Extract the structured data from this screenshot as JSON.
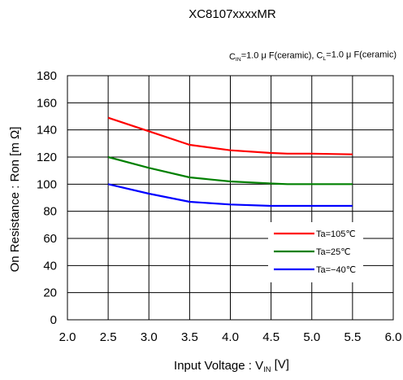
{
  "chart_data": {
    "type": "line",
    "title": "XC8107xxxxMR",
    "subtitle": "C_IN=1.0 μ F(ceramic), C_L=1.0 μ F(ceramic)",
    "xlabel": "Input Voltage : V_IN [V]",
    "ylabel": "On Resistance : Ron [m Ω]",
    "xlim": [
      2.0,
      6.0
    ],
    "ylim": [
      0,
      180
    ],
    "xticks": [
      "2.0",
      "2.5",
      "3.0",
      "3.5",
      "4.0",
      "4.5",
      "5.0",
      "5.5",
      "6.0"
    ],
    "yticks": [
      "0",
      "20",
      "40",
      "60",
      "80",
      "100",
      "120",
      "140",
      "160",
      "180"
    ],
    "grid": true,
    "legend_position": "lower-right",
    "x": [
      2.5,
      3.0,
      3.5,
      4.0,
      4.5,
      4.7,
      5.0,
      5.5
    ],
    "series": [
      {
        "name": "Ta=105℃",
        "color": "#ff0000",
        "values": [
          149,
          139,
          129,
          125,
          123,
          122.5,
          122.5,
          122
        ]
      },
      {
        "name": "Ta=25℃",
        "color": "#008000",
        "values": [
          120,
          112,
          105,
          102,
          100.5,
          100,
          100,
          100
        ]
      },
      {
        "name": "Ta=−40℃",
        "color": "#0000ff",
        "values": [
          100,
          93,
          87,
          85,
          84,
          84,
          84,
          84
        ]
      }
    ]
  }
}
